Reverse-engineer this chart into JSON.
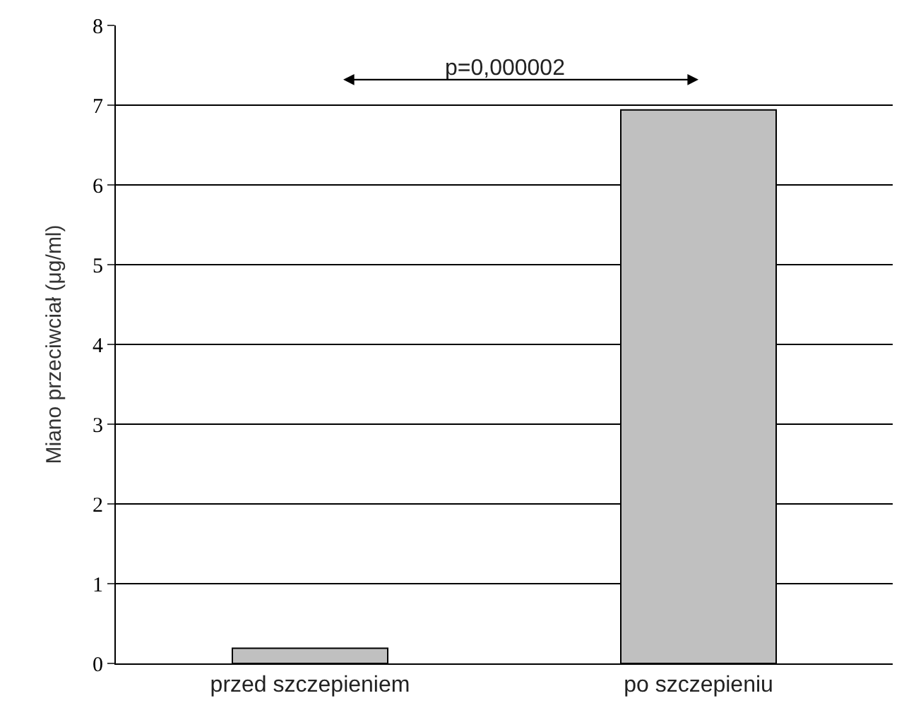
{
  "chart_data": {
    "type": "bar",
    "ylabel": "Miano przeciwciał (μg/ml)",
    "categories": [
      "przed szczepieniem",
      "po szczepieniu"
    ],
    "values": [
      0.19,
      6.94
    ],
    "color": "#c0c0c0",
    "ylim": [
      0,
      8
    ],
    "yticks": [
      0,
      1,
      2,
      3,
      4,
      5,
      6,
      7,
      8
    ],
    "grid": "y",
    "legend": false,
    "annotations": [
      "p=0,000002"
    ]
  }
}
